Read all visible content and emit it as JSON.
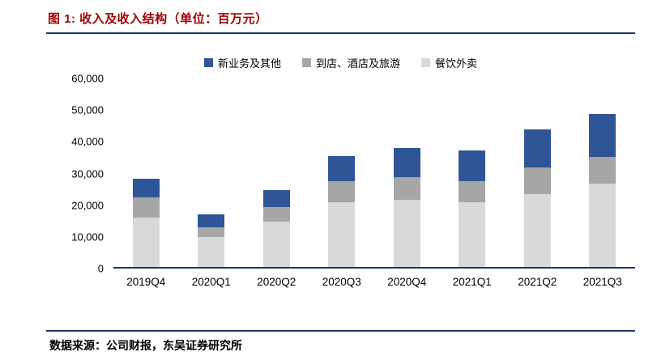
{
  "title": "图 1:  收入及收入结构（单位：百万元）",
  "source": "数据来源：公司财报，东吴证券研究所",
  "colors": {
    "title_red": "#A00000",
    "rule_navy": "#1F3864",
    "axis_line": "#1F3864"
  },
  "chart_data": {
    "type": "bar",
    "stacked": true,
    "title": "收入及收入结构（单位：百万元）",
    "categories": [
      "2019Q4",
      "2020Q1",
      "2020Q2",
      "2020Q3",
      "2020Q4",
      "2021Q1",
      "2021Q2",
      "2021Q3"
    ],
    "series": [
      {
        "name": "餐饮外卖",
        "color": "#D9D9D9",
        "values": [
          15700,
          9500,
          14500,
          20700,
          21500,
          20600,
          23100,
          26500
        ]
      },
      {
        "name": "到店、酒店及旅游",
        "color": "#A6A6A6",
        "values": [
          6400,
          3100,
          4500,
          6500,
          7100,
          6600,
          8600,
          8600
        ]
      },
      {
        "name": "新业务及其他",
        "color": "#2F5597",
        "values": [
          6100,
          4200,
          5600,
          8200,
          9200,
          9900,
          12000,
          13700
        ]
      }
    ],
    "totals": [
      28200,
      16800,
      24600,
      35400,
      37800,
      37100,
      43700,
      48800
    ],
    "xlabel": "",
    "ylabel": "",
    "ylim": [
      0,
      60000
    ],
    "ytick_step": 10000,
    "ytick_labels": [
      "0",
      "10,000",
      "20,000",
      "30,000",
      "40,000",
      "50,000",
      "60,000"
    ],
    "grid": false,
    "legend_position": "top",
    "legend_order": [
      "新业务及其他",
      "到店、酒店及旅游",
      "餐饮外卖"
    ]
  }
}
